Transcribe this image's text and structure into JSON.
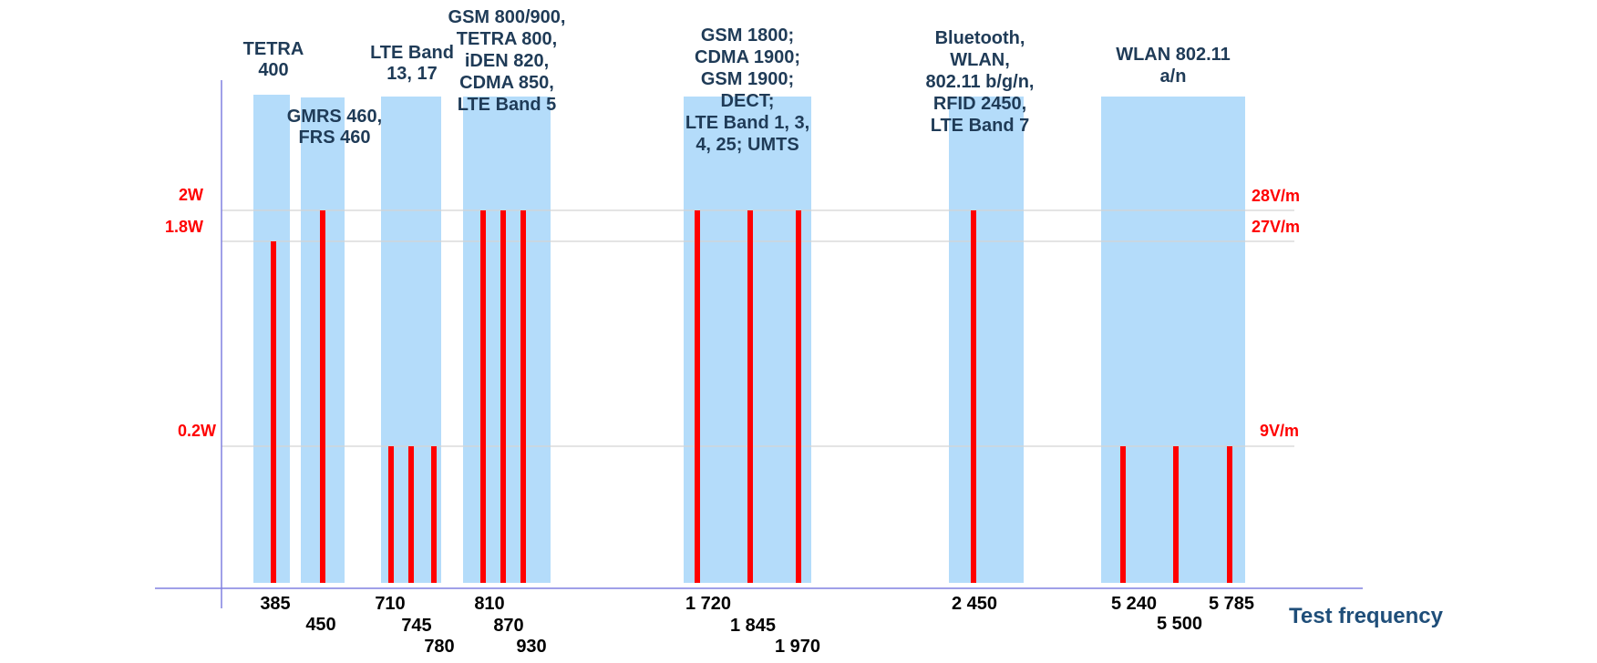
{
  "chart_data": {
    "type": "bar",
    "xlabel": "Test frequency",
    "power_levels": [
      {
        "label": "2W",
        "value": 2.0
      },
      {
        "label": "1.8W",
        "value": 1.8
      },
      {
        "label": "0.2W",
        "value": 0.2
      }
    ],
    "field_levels": [
      {
        "label": "28V/m",
        "value": 28
      },
      {
        "label": "27V/m",
        "value": 27
      },
      {
        "label": "9V/m",
        "value": 9
      }
    ],
    "bands": [
      {
        "name": "TETRA 400",
        "lines": [
          "TETRA",
          "400"
        ]
      },
      {
        "name": "GMRS 460, FRS 460",
        "lines": [
          "GMRS 460,",
          "FRS 460"
        ]
      },
      {
        "name": "LTE Band 13, 17",
        "lines": [
          "LTE Band",
          "13, 17"
        ]
      },
      {
        "name": "GSM 800/900, TETRA 800, iDEN 820, CDMA 850, LTE Band 5",
        "lines": [
          "GSM 800/900,",
          "TETRA 800,",
          "iDEN 820,",
          "CDMA 850,",
          "LTE Band 5"
        ]
      },
      {
        "name": "GSM 1800; CDMA 1900; GSM 1900; DECT; LTE Band 1, 3, 4, 25; UMTS",
        "lines": [
          "GSM 1800;",
          "CDMA 1900;",
          "GSM 1900;",
          "DECT;",
          "LTE Band 1, 3,",
          "4, 25; UMTS"
        ]
      },
      {
        "name": "Bluetooth, WLAN, 802.11 b/g/n, RFID 2450, LTE Band 7",
        "lines": [
          "Bluetooth,",
          "WLAN,",
          "802.11 b/g/n,",
          "RFID 2450,",
          "LTE Band 7"
        ]
      },
      {
        "name": "WLAN 802.11 a/n",
        "lines": [
          "WLAN 802.11",
          "a/n"
        ]
      }
    ],
    "test_frequencies": [
      {
        "freq": 385,
        "label": "385",
        "power_w": 1.8,
        "field_v_per_m": 27,
        "band": 0
      },
      {
        "freq": 450,
        "label": "450",
        "power_w": 2.0,
        "field_v_per_m": 28,
        "band": 1
      },
      {
        "freq": 710,
        "label": "710",
        "power_w": 0.2,
        "field_v_per_m": 9,
        "band": 2
      },
      {
        "freq": 745,
        "label": "745",
        "power_w": 0.2,
        "field_v_per_m": 9,
        "band": 2
      },
      {
        "freq": 780,
        "label": "780",
        "power_w": 0.2,
        "field_v_per_m": 9,
        "band": 2
      },
      {
        "freq": 810,
        "label": "810",
        "power_w": 2.0,
        "field_v_per_m": 28,
        "band": 3
      },
      {
        "freq": 870,
        "label": "870",
        "power_w": 2.0,
        "field_v_per_m": 28,
        "band": 3
      },
      {
        "freq": 930,
        "label": "930",
        "power_w": 2.0,
        "field_v_per_m": 28,
        "band": 3
      },
      {
        "freq": 1720,
        "label": "1 720",
        "power_w": 2.0,
        "field_v_per_m": 28,
        "band": 4
      },
      {
        "freq": 1845,
        "label": "1 845",
        "power_w": 2.0,
        "field_v_per_m": 28,
        "band": 4
      },
      {
        "freq": 1970,
        "label": "1 970",
        "power_w": 2.0,
        "field_v_per_m": 28,
        "band": 4
      },
      {
        "freq": 2450,
        "label": "2 450",
        "power_w": 2.0,
        "field_v_per_m": 28,
        "band": 5
      },
      {
        "freq": 5240,
        "label": "5 240",
        "power_w": 0.2,
        "field_v_per_m": 9,
        "band": 6
      },
      {
        "freq": 5500,
        "label": "5 500",
        "power_w": 0.2,
        "field_v_per_m": 9,
        "band": 6
      },
      {
        "freq": 5785,
        "label": "5 785",
        "power_w": 0.2,
        "field_v_per_m": 9,
        "band": 6
      }
    ],
    "colors": {
      "band_fill": "#b4dcfa",
      "bar": "#ff0000",
      "level_label": "#ff0000",
      "band_label": "#1f3b57",
      "axis": "#8080e0",
      "gridline": "#d4d4d4",
      "tick_label": "#000000",
      "xlabel": "#1f4e79"
    }
  }
}
